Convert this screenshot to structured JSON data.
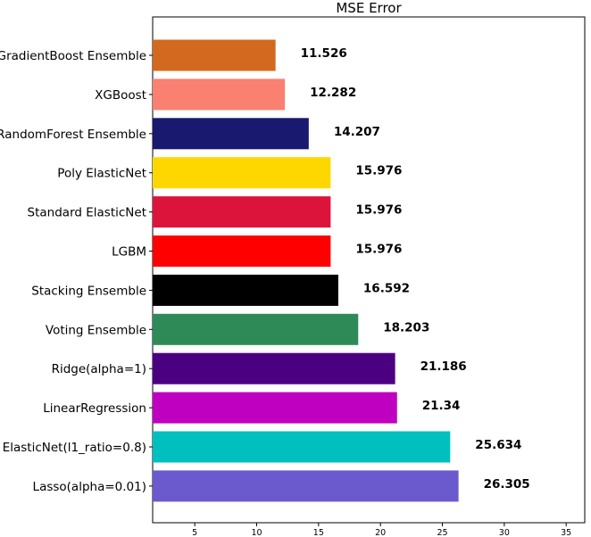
{
  "chart_data": {
    "type": "bar",
    "orientation": "horizontal",
    "title": "MSE Error",
    "xlabel": "",
    "ylabel": "",
    "xlim": [
      1.6,
      36.5
    ],
    "xticks": [
      5,
      10,
      15,
      20,
      25,
      30,
      35
    ],
    "grid": false,
    "legend": "none",
    "categories": [
      "GradientBoost Ensemble",
      "XGBoost",
      "RandomForest Ensemble",
      "Poly ElasticNet",
      "Standard ElasticNet",
      "LGBM",
      "Stacking Ensemble",
      "Voting Ensemble",
      "Ridge(alpha=1)",
      "LinearRegression",
      "ElasticNet(l1_ratio=0.8)",
      "Lasso(alpha=0.01)"
    ],
    "values": [
      11.526,
      12.282,
      14.207,
      15.976,
      15.976,
      15.976,
      16.592,
      18.203,
      21.186,
      21.34,
      25.634,
      26.305
    ],
    "value_labels": [
      "11.526",
      "12.282",
      "14.207",
      "15.976",
      "15.976",
      "15.976",
      "16.592",
      "18.203",
      "21.186",
      "21.34",
      "25.634",
      "26.305"
    ],
    "colors": [
      "#d2691e",
      "#fa8072",
      "#191970",
      "#ffd700",
      "#dc143c",
      "#ff0000",
      "#000000",
      "#2e8b57",
      "#4b0082",
      "#c000c0",
      "#00bfbf",
      "#6a5acd"
    ]
  }
}
